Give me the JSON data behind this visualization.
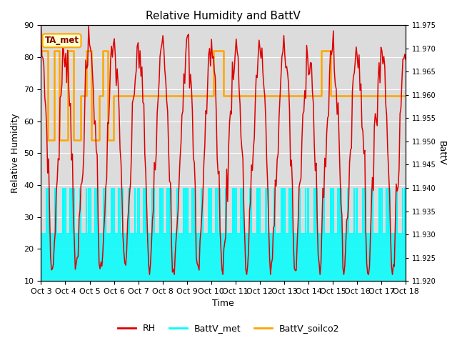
{
  "title": "Relative Humidity and BattV",
  "xlabel": "Time",
  "ylabel_left": "Relative Humidity",
  "ylabel_right": "BattV",
  "xlim": [
    0,
    15
  ],
  "ylim_left": [
    10,
    90
  ],
  "ylim_right": [
    11.92,
    11.975
  ],
  "xtick_labels": [
    "Oct 3",
    "Oct 4",
    "Oct 5",
    "Oct 6",
    "Oct 7",
    "Oct 8",
    "Oct 9",
    "Oct 10",
    "Oct 11",
    "Oct 12",
    "Oct 13",
    "Oct 14",
    "Oct 15",
    "Oct 16",
    "Oct 17",
    "Oct 18"
  ],
  "ytick_left": [
    10,
    20,
    30,
    40,
    50,
    60,
    70,
    80,
    90
  ],
  "ytick_right": [
    11.92,
    11.925,
    11.93,
    11.935,
    11.94,
    11.945,
    11.95,
    11.955,
    11.96,
    11.965,
    11.97,
    11.975
  ],
  "bg_color": "#dcdcdc",
  "rh_color": "#dd0000",
  "battv_met_color": "#00ffff",
  "battv_soilco2_color": "#ffa500",
  "annotation_text": "TA_met",
  "annotation_box_color": "#ffffcc",
  "annotation_border_color": "#ffa500",
  "annotation_text_color": "#800000",
  "figsize": [
    6.4,
    4.8
  ],
  "dpi": 100
}
